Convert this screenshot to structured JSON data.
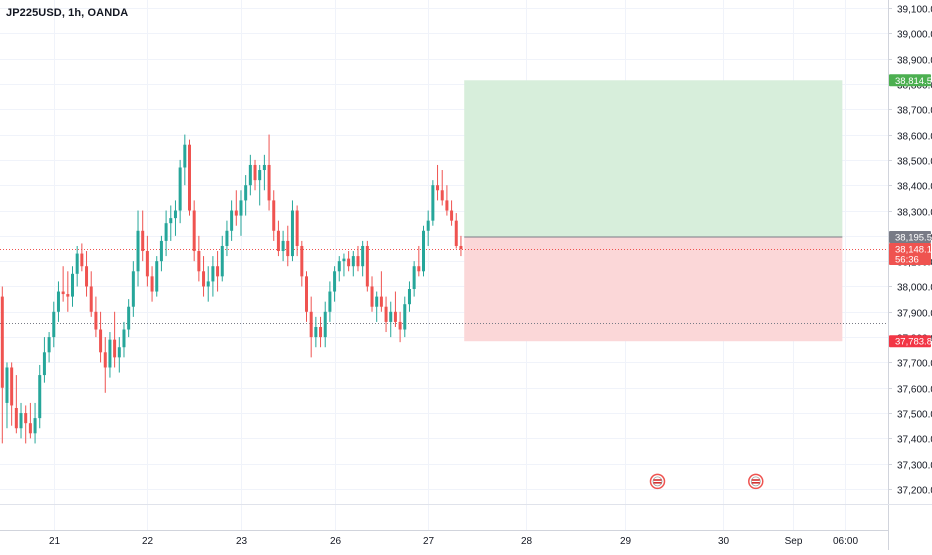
{
  "symbol": {
    "title": "JP225USD, 1h, OANDA"
  },
  "colors": {
    "up": "#26a69a",
    "down": "#ef5350",
    "profit_zone": "#d7eedb",
    "loss_zone": "#fbd7d8",
    "grid": "#f0f3fa",
    "axis_text": "#131722",
    "axis_line": "#d1d4dc",
    "entry_line": "#787b86",
    "price_line": "#ef5350",
    "ref_line": "#787b86",
    "target_label": "#4caf50",
    "stop_label": "#f23645",
    "entry_label": "#787b86"
  },
  "chart_data": {
    "type": "candlestick",
    "y_axis": {
      "min": 37150,
      "max": 39120,
      "ticks": [
        37200,
        37300,
        37400,
        37500,
        37600,
        37700,
        37800,
        37900,
        38000,
        38100,
        38200,
        38300,
        38400,
        38500,
        38600,
        38700,
        38800,
        38900,
        39000,
        39100
      ],
      "tick_labels": [
        "37,200.0",
        "37,300.0",
        "37,400.0",
        "37,500.0",
        "37,600.0",
        "37,700.0",
        "37,800.0",
        "37,900.0",
        "38,000.0",
        "38,100.0",
        "38,200.0",
        "38,300.0",
        "38,400.0",
        "38,500.0",
        "38,600.0",
        "38,700.0",
        "38,800.0",
        "38,900.0",
        "39,000.0",
        "39,100.0"
      ]
    },
    "x_axis": {
      "labels": [
        "21",
        "22",
        "23",
        "26",
        "27",
        "28",
        "29",
        "30",
        "Sep",
        "06:00"
      ],
      "label_bars": [
        11,
        31,
        51,
        71,
        91,
        112,
        133,
        154,
        169,
        180
      ],
      "total_bars": 198
    },
    "grid": true,
    "current_price": {
      "value": 38148.1,
      "label": "38,148.1",
      "countdown": "56:36"
    },
    "reference_line": {
      "value": 37856
    },
    "position": {
      "type": "long",
      "entry": 38195.5,
      "entry_label": "38,195.5",
      "target": 38814.5,
      "target_label": "38,814.5",
      "stop": 37783.8,
      "stop_label": "37,783.8",
      "start_bar": 98.7,
      "end_bar": 179.5
    },
    "event_markers": {
      "bars": [
        140,
        161
      ],
      "value": 37230
    },
    "candles": {
      "fields": [
        "open",
        "high",
        "low",
        "close"
      ],
      "data": [
        [
          37960,
          38000,
          37380,
          37600
        ],
        [
          37540,
          37700,
          37440,
          37680
        ],
        [
          37680,
          37700,
          37450,
          37530
        ],
        [
          37520,
          37650,
          37420,
          37440
        ],
        [
          37440,
          37540,
          37400,
          37500
        ],
        [
          37500,
          37530,
          37380,
          37460
        ],
        [
          37460,
          37540,
          37400,
          37420
        ],
        [
          37420,
          37540,
          37380,
          37480
        ],
        [
          37480,
          37690,
          37440,
          37650
        ],
        [
          37650,
          37800,
          37620,
          37740
        ],
        [
          37740,
          37820,
          37700,
          37800
        ],
        [
          37800,
          37940,
          37760,
          37900
        ],
        [
          37900,
          38020,
          37860,
          37980
        ],
        [
          37980,
          38080,
          37940,
          37970
        ],
        [
          37970,
          38060,
          37900,
          37960
        ],
        [
          37960,
          38080,
          37920,
          38050
        ],
        [
          38050,
          38160,
          38000,
          38130
        ],
        [
          38130,
          38170,
          38060,
          38080
        ],
        [
          38080,
          38140,
          37960,
          38000
        ],
        [
          38000,
          38060,
          37880,
          37900
        ],
        [
          37900,
          37960,
          37800,
          37830
        ],
        [
          37830,
          37900,
          37700,
          37740
        ],
        [
          37740,
          37800,
          37580,
          37680
        ],
        [
          37680,
          37820,
          37640,
          37790
        ],
        [
          37790,
          37900,
          37680,
          37720
        ],
        [
          37720,
          37800,
          37660,
          37760
        ],
        [
          37760,
          37860,
          37720,
          37830
        ],
        [
          37830,
          37950,
          37800,
          37920
        ],
        [
          37920,
          38100,
          37880,
          38060
        ],
        [
          38060,
          38300,
          38000,
          38220
        ],
        [
          38220,
          38300,
          38100,
          38140
        ],
        [
          38140,
          38200,
          38000,
          38040
        ],
        [
          38040,
          38080,
          37940,
          37980
        ],
        [
          37980,
          38120,
          37960,
          38100
        ],
        [
          38100,
          38200,
          38060,
          38180
        ],
        [
          38180,
          38300,
          38120,
          38250
        ],
        [
          38250,
          38320,
          38180,
          38270
        ],
        [
          38270,
          38340,
          38200,
          38300
        ],
        [
          38300,
          38500,
          38250,
          38470
        ],
        [
          38470,
          38600,
          38400,
          38560
        ],
        [
          38560,
          38580,
          38280,
          38300
        ],
        [
          38300,
          38340,
          38100,
          38140
        ],
        [
          38140,
          38200,
          38020,
          38060
        ],
        [
          38060,
          38120,
          37960,
          38000
        ],
        [
          38000,
          38080,
          37940,
          38020
        ],
        [
          38020,
          38120,
          37960,
          38080
        ],
        [
          38080,
          38140,
          37980,
          38040
        ],
        [
          38040,
          38200,
          38020,
          38160
        ],
        [
          38160,
          38260,
          38120,
          38220
        ],
        [
          38220,
          38340,
          38180,
          38300
        ],
        [
          38300,
          38380,
          38240,
          38280
        ],
        [
          38280,
          38380,
          38200,
          38340
        ],
        [
          38340,
          38440,
          38280,
          38400
        ],
        [
          38400,
          38520,
          38360,
          38480
        ],
        [
          38480,
          38500,
          38380,
          38420
        ],
        [
          38420,
          38480,
          38320,
          38460
        ],
        [
          38460,
          38520,
          38380,
          38480
        ],
        [
          38480,
          38600,
          38300,
          38340
        ],
        [
          38340,
          38380,
          38180,
          38220
        ],
        [
          38220,
          38260,
          38120,
          38140
        ],
        [
          38140,
          38220,
          38100,
          38180
        ],
        [
          38180,
          38240,
          38080,
          38120
        ],
        [
          38120,
          38340,
          38100,
          38300
        ],
        [
          38300,
          38320,
          38120,
          38160
        ],
        [
          38160,
          38180,
          38000,
          38040
        ],
        [
          38040,
          38060,
          37860,
          37900
        ],
        [
          37900,
          37960,
          37720,
          37800
        ],
        [
          37800,
          37880,
          37760,
          37840
        ],
        [
          37840,
          37880,
          37760,
          37800
        ],
        [
          37800,
          37940,
          37760,
          37900
        ],
        [
          37900,
          38020,
          37860,
          37980
        ],
        [
          37980,
          38080,
          37940,
          38060
        ],
        [
          38060,
          38120,
          38020,
          38100
        ],
        [
          38100,
          38130,
          38040,
          38110
        ],
        [
          38110,
          38140,
          38060,
          38080
        ],
        [
          38080,
          38140,
          38040,
          38120
        ],
        [
          38120,
          38160,
          38060,
          38080
        ],
        [
          38080,
          38180,
          38040,
          38160
        ],
        [
          38160,
          38180,
          37980,
          38000
        ],
        [
          38000,
          38040,
          37900,
          37920
        ],
        [
          37920,
          37980,
          37860,
          37960
        ],
        [
          37960,
          38060,
          37900,
          37920
        ],
        [
          37920,
          37960,
          37820,
          37860
        ],
        [
          37860,
          37940,
          37800,
          37900
        ],
        [
          37900,
          37980,
          37840,
          37860
        ],
        [
          37860,
          37900,
          37780,
          37830
        ],
        [
          37830,
          37960,
          37800,
          37930
        ],
        [
          37930,
          38020,
          37900,
          37990
        ],
        [
          37990,
          38100,
          37960,
          38080
        ],
        [
          38080,
          38160,
          38040,
          38060
        ],
        [
          38060,
          38240,
          38040,
          38220
        ],
        [
          38220,
          38300,
          38160,
          38260
        ],
        [
          38260,
          38420,
          38240,
          38400
        ],
        [
          38400,
          38480,
          38340,
          38380
        ],
        [
          38380,
          38460,
          38320,
          38340
        ],
        [
          38340,
          38400,
          38280,
          38300
        ],
        [
          38300,
          38340,
          38240,
          38260
        ],
        [
          38260,
          38290,
          38150,
          38160
        ],
        [
          38160,
          38200,
          38120,
          38148
        ]
      ]
    }
  }
}
